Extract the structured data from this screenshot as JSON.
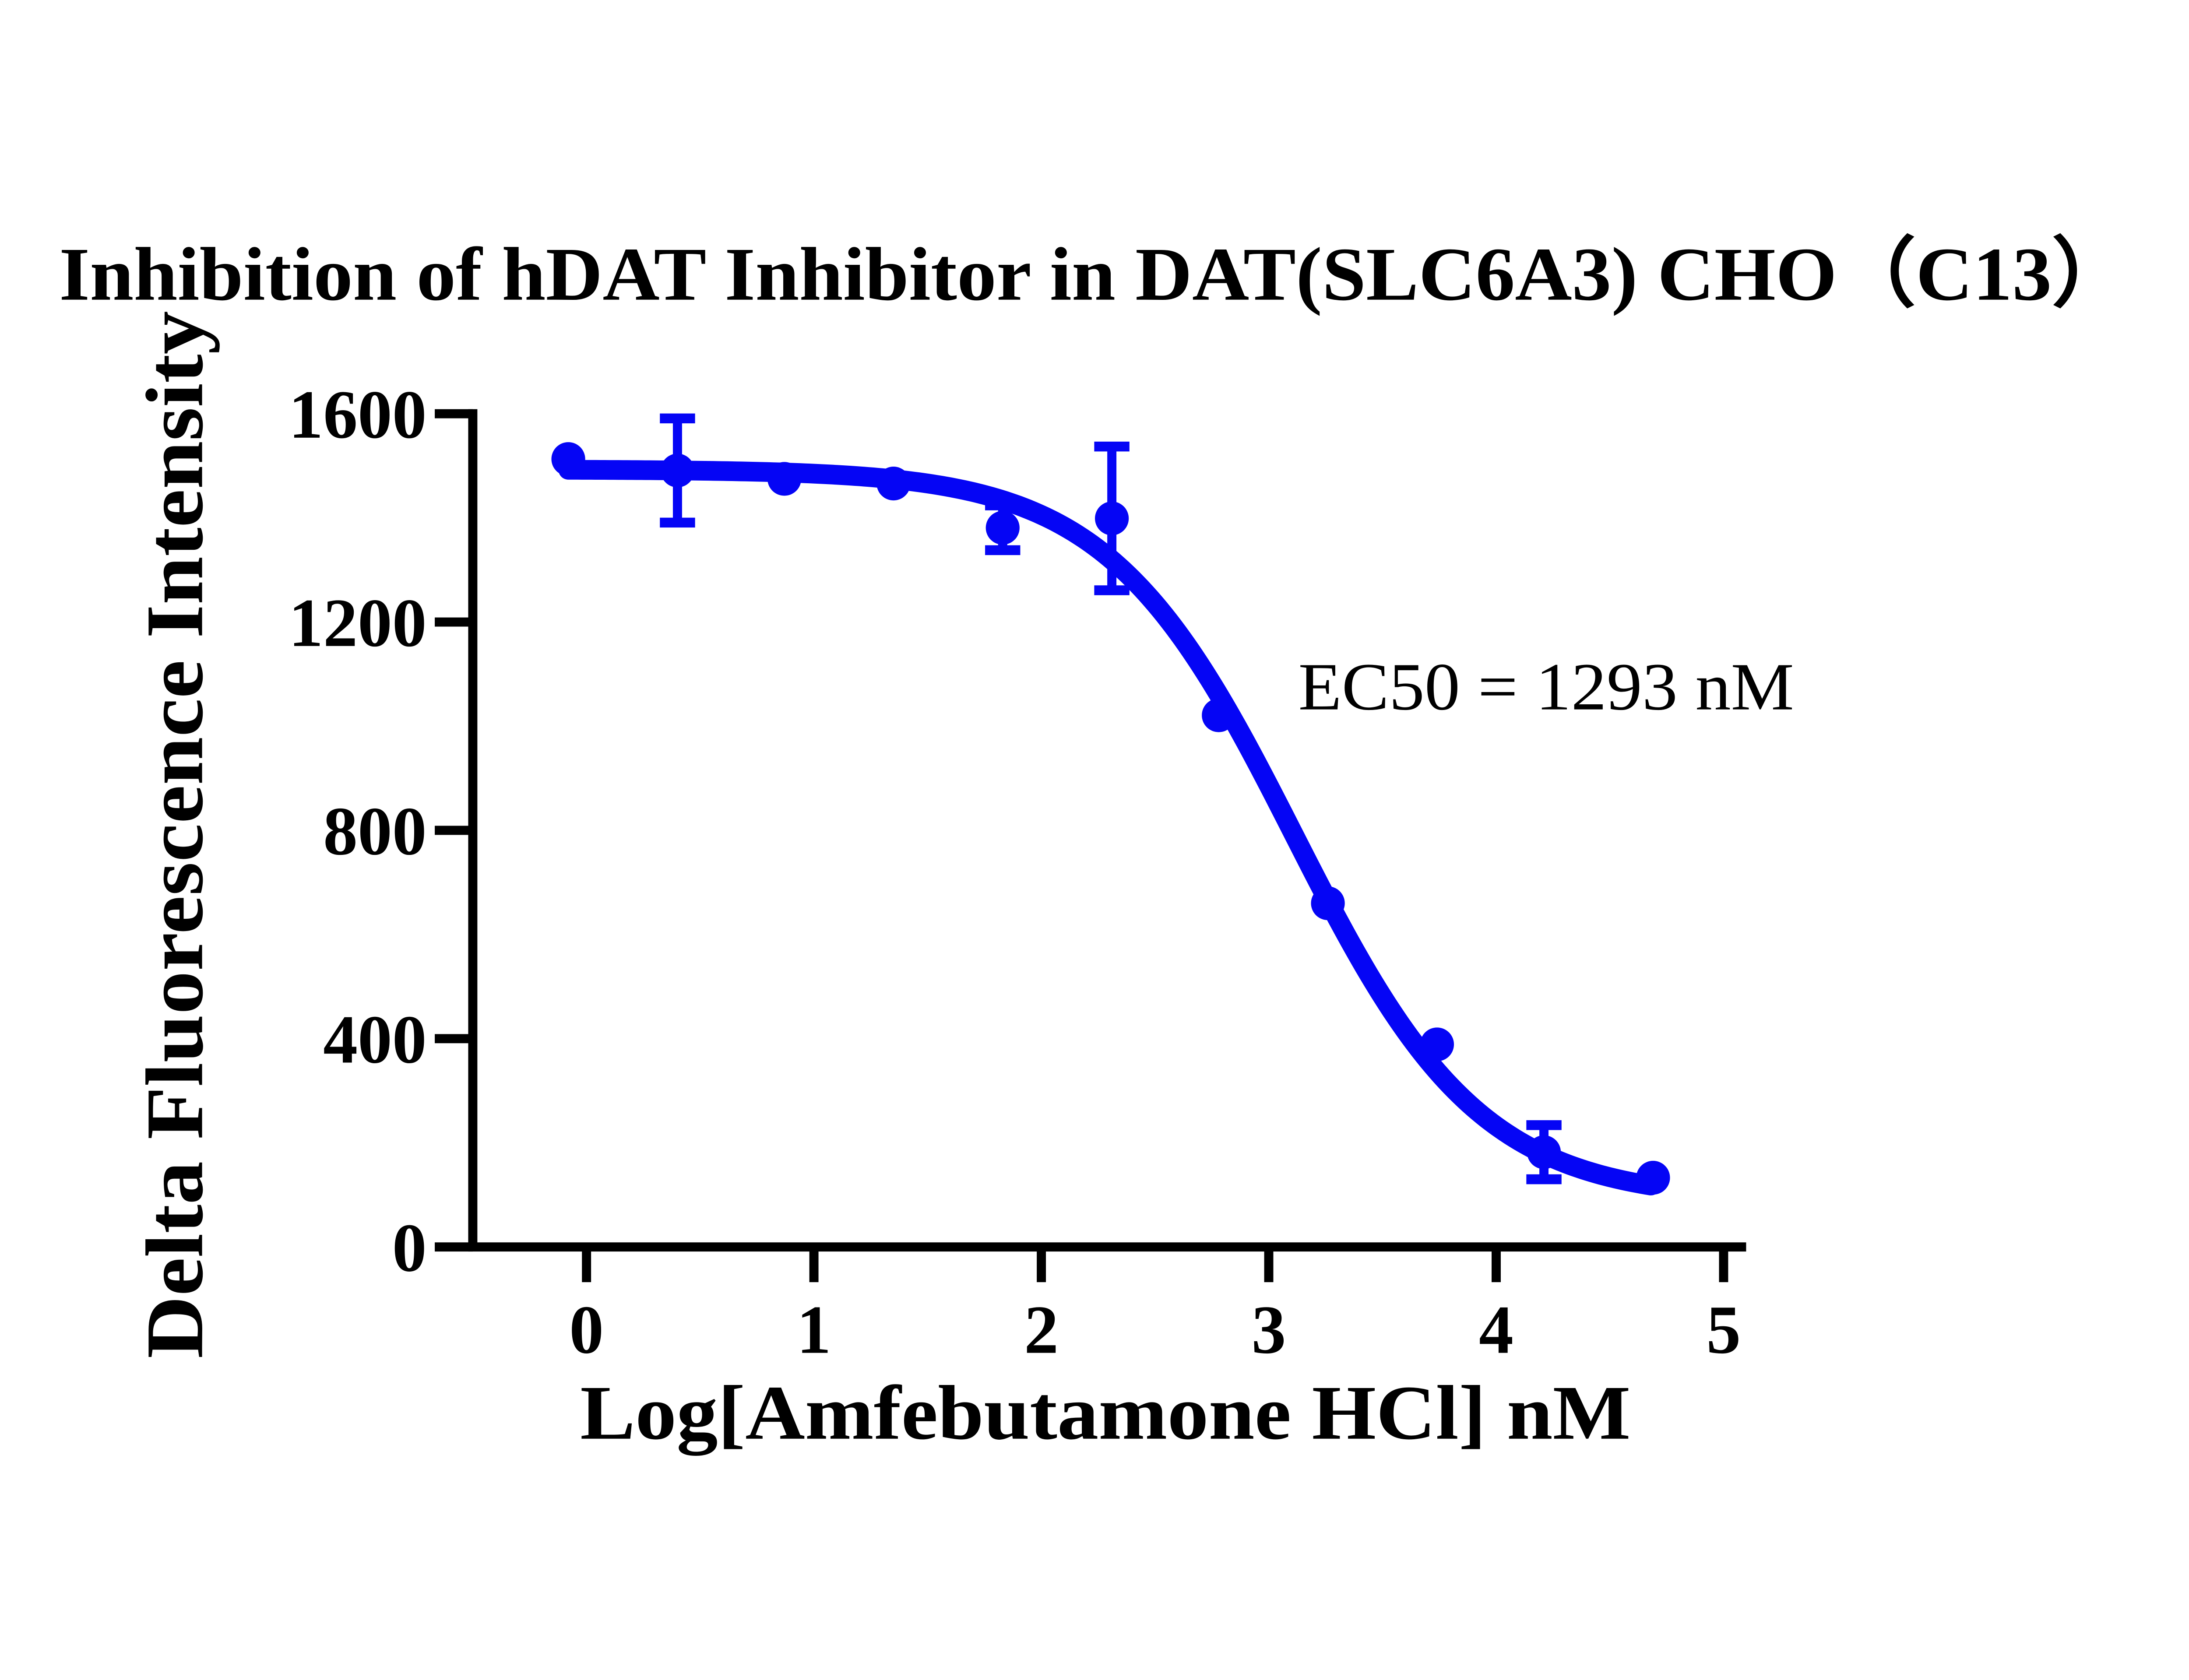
{
  "chart_data": {
    "type": "scatter",
    "title": "Inhibition of hDAT Inhibitor in DAT(SLC6A3) CHO（C13）",
    "xlabel": "Log[Amfebutamone HCl] nM",
    "ylabel": "Delta Fluorescence Intensity",
    "annotation": "EC50 = 1293 nM",
    "ec50_nM": 1293,
    "xlim": [
      -0.5,
      5.0
    ],
    "ylim": [
      0,
      1600
    ],
    "x_ticks": [
      0,
      1,
      2,
      3,
      4,
      5
    ],
    "y_ticks": [
      0,
      400,
      800,
      1200,
      1600
    ],
    "grid": false,
    "legend": "none",
    "series_color": "#0505F5",
    "points": [
      {
        "log_x": -0.08,
        "y": 1513,
        "err": null
      },
      {
        "log_x": 0.4,
        "y": 1491,
        "err": 100
      },
      {
        "log_x": 0.87,
        "y": 1475,
        "err": null
      },
      {
        "log_x": 1.35,
        "y": 1466,
        "err": null
      },
      {
        "log_x": 1.83,
        "y": 1381,
        "err": 43
      },
      {
        "log_x": 2.31,
        "y": 1399,
        "err": 138
      },
      {
        "log_x": 2.78,
        "y": 1021,
        "err": null
      },
      {
        "log_x": 3.26,
        "y": 660,
        "err": null
      },
      {
        "log_x": 3.74,
        "y": 389,
        "err": null
      },
      {
        "log_x": 4.21,
        "y": 182,
        "err": 52
      },
      {
        "log_x": 4.69,
        "y": 133,
        "err": null
      }
    ],
    "fit": {
      "model": "four-parameter-logistic",
      "top": 1493,
      "bottom": 88,
      "log_ec50": 3.112,
      "hill": 1.06,
      "x_start": -0.08,
      "x_end": 4.69
    }
  }
}
